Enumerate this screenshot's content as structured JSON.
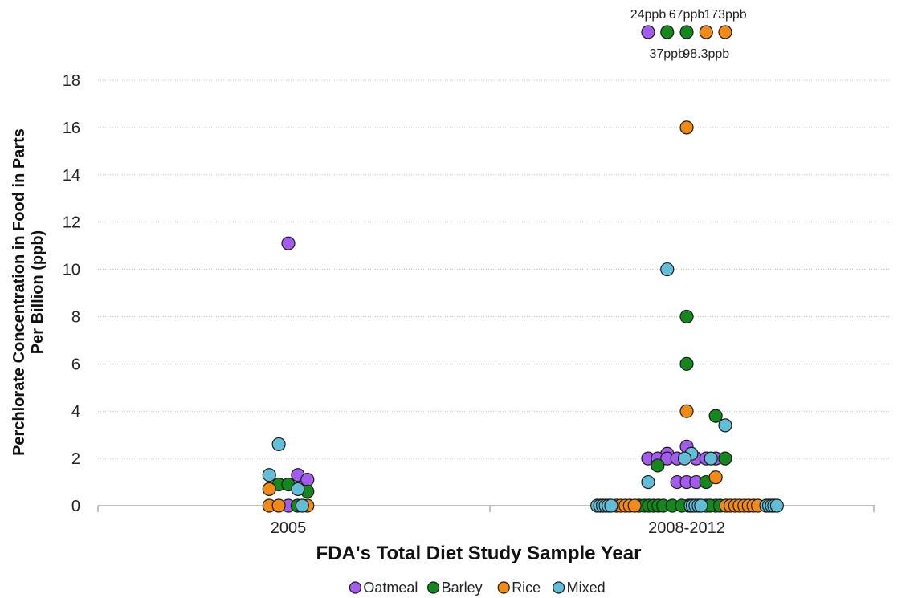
{
  "chart_data": {
    "type": "scatter",
    "title": "",
    "xlabel": "FDA's Total Diet Study Sample Year",
    "ylabel_lines": [
      "Perchlorate Concentration in Food in Parts",
      "Per Billion (ppb)"
    ],
    "ylim": [
      0,
      18
    ],
    "yticks": [
      0,
      2,
      4,
      6,
      8,
      10,
      12,
      14,
      16,
      18
    ],
    "grid": true,
    "legend_position": "bottom",
    "categories": [
      "2005",
      "2008-2012"
    ],
    "colors": {
      "Oatmeal": "#a45cf0",
      "Barley": "#14881c",
      "Rice": "#f18a16",
      "Mixed": "#62bdd6"
    },
    "series": [
      {
        "name": "Oatmeal",
        "points": [
          {
            "x": "2005",
            "y": 11.1,
            "j": 0.0
          },
          {
            "x": "2005",
            "y": 1.3,
            "j": 0.24
          },
          {
            "x": "2005",
            "y": 1.1,
            "j": 0.48
          },
          {
            "x": "2005",
            "y": 0,
            "j": 0.0
          },
          {
            "x": "2008-2012",
            "y": 2.5,
            "j": 0.0
          },
          {
            "x": "2008-2012",
            "y": 2.2,
            "j": -0.49
          },
          {
            "x": "2008-2012",
            "y": 2.0,
            "j": -0.97
          },
          {
            "x": "2008-2012",
            "y": 2.0,
            "j": -0.73
          },
          {
            "x": "2008-2012",
            "y": 2.0,
            "j": -0.49
          },
          {
            "x": "2008-2012",
            "y": 2.0,
            "j": -0.24
          },
          {
            "x": "2008-2012",
            "y": 2.0,
            "j": 0.24
          },
          {
            "x": "2008-2012",
            "y": 2.0,
            "j": 0.49
          },
          {
            "x": "2008-2012",
            "y": 2.0,
            "j": 0.73
          },
          {
            "x": "2008-2012",
            "y": 1.0,
            "j": -0.24
          },
          {
            "x": "2008-2012",
            "y": 1.0,
            "j": 0.0
          },
          {
            "x": "2008-2012",
            "y": 1.0,
            "j": 0.24
          },
          {
            "x": "2008-2012",
            "y": 0,
            "j": 0.05
          },
          {
            "x": "2008-2012",
            "y": 0,
            "j": 0.49
          },
          {
            "x": "2008-2012",
            "y": 0,
            "j": 0.73
          }
        ]
      },
      {
        "name": "Barley",
        "points": [
          {
            "x": "2005",
            "y": 0.9,
            "j": -0.24
          },
          {
            "x": "2005",
            "y": 0.9,
            "j": 0.0
          },
          {
            "x": "2005",
            "y": 0.6,
            "j": 0.48
          },
          {
            "x": "2005",
            "y": 0,
            "j": 0.23
          },
          {
            "x": "2008-2012",
            "y": 8.0,
            "j": 0.0
          },
          {
            "x": "2008-2012",
            "y": 6.0,
            "j": 0.0
          },
          {
            "x": "2008-2012",
            "y": 3.8,
            "j": 0.73
          },
          {
            "x": "2008-2012",
            "y": 2.0,
            "j": 0.97
          },
          {
            "x": "2008-2012",
            "y": 1.7,
            "j": -0.73
          },
          {
            "x": "2008-2012",
            "y": 1.0,
            "j": 0.49
          },
          {
            "x": "2008-2012",
            "y": 0,
            "j": -1.2
          },
          {
            "x": "2008-2012",
            "y": 0,
            "j": -1.07
          },
          {
            "x": "2008-2012",
            "y": 0,
            "j": -0.95
          },
          {
            "x": "2008-2012",
            "y": 0,
            "j": -0.83
          },
          {
            "x": "2008-2012",
            "y": 0,
            "j": -0.71
          },
          {
            "x": "2008-2012",
            "y": 0,
            "j": -0.59
          },
          {
            "x": "2008-2012",
            "y": 0,
            "j": -0.36
          },
          {
            "x": "2008-2012",
            "y": 0,
            "j": -0.12
          },
          {
            "x": "2008-2012",
            "y": 0,
            "j": 0.59
          },
          {
            "x": "2008-2012",
            "y": 0,
            "j": 0.84
          }
        ]
      },
      {
        "name": "Rice",
        "points": [
          {
            "x": "2005",
            "y": 0.7,
            "j": -0.48
          },
          {
            "x": "2005",
            "y": 0,
            "j": -0.48
          },
          {
            "x": "2005",
            "y": 0,
            "j": -0.24
          },
          {
            "x": "2005",
            "y": 0,
            "j": 0.48
          },
          {
            "x": "2008-2012",
            "y": 16.0,
            "j": 0.0
          },
          {
            "x": "2008-2012",
            "y": 4.0,
            "j": 0.0
          },
          {
            "x": "2008-2012",
            "y": 1.2,
            "j": 0.73
          },
          {
            "x": "2008-2012",
            "y": 0,
            "j": -1.77
          },
          {
            "x": "2008-2012",
            "y": 0,
            "j": -1.66
          },
          {
            "x": "2008-2012",
            "y": 0,
            "j": -1.54
          },
          {
            "x": "2008-2012",
            "y": 0,
            "j": -1.43
          },
          {
            "x": "2008-2012",
            "y": 0,
            "j": -1.31
          },
          {
            "x": "2008-2012",
            "y": 0,
            "j": 0.99
          },
          {
            "x": "2008-2012",
            "y": 0,
            "j": 1.1
          },
          {
            "x": "2008-2012",
            "y": 0,
            "j": 1.22
          },
          {
            "x": "2008-2012",
            "y": 0,
            "j": 1.33
          },
          {
            "x": "2008-2012",
            "y": 0,
            "j": 1.45
          },
          {
            "x": "2008-2012",
            "y": 0,
            "j": 1.56
          },
          {
            "x": "2008-2012",
            "y": 0,
            "j": 1.68
          },
          {
            "x": "2008-2012",
            "y": 0,
            "j": 1.79
          }
        ]
      },
      {
        "name": "Mixed",
        "points": [
          {
            "x": "2005",
            "y": 2.6,
            "j": -0.24
          },
          {
            "x": "2005",
            "y": 1.3,
            "j": -0.48
          },
          {
            "x": "2005",
            "y": 0.7,
            "j": 0.24
          },
          {
            "x": "2005",
            "y": 0,
            "j": 0.35
          },
          {
            "x": "2008-2012",
            "y": 10.0,
            "j": -0.49
          },
          {
            "x": "2008-2012",
            "y": 3.4,
            "j": 0.97
          },
          {
            "x": "2008-2012",
            "y": 2.2,
            "j": 0.12
          },
          {
            "x": "2008-2012",
            "y": 2.0,
            "j": -0.05
          },
          {
            "x": "2008-2012",
            "y": 2.0,
            "j": 0.61
          },
          {
            "x": "2008-2012",
            "y": 1.0,
            "j": -0.97
          },
          {
            "x": "2008-2012",
            "y": 0,
            "j": -2.25
          },
          {
            "x": "2008-2012",
            "y": 0,
            "j": -2.18
          },
          {
            "x": "2008-2012",
            "y": 0,
            "j": -2.11
          },
          {
            "x": "2008-2012",
            "y": 0,
            "j": -2.04
          },
          {
            "x": "2008-2012",
            "y": 0,
            "j": -1.97
          },
          {
            "x": "2008-2012",
            "y": 0,
            "j": -1.9
          },
          {
            "x": "2008-2012",
            "y": 0,
            "j": 0.1
          },
          {
            "x": "2008-2012",
            "y": 0,
            "j": 0.15
          },
          {
            "x": "2008-2012",
            "y": 0,
            "j": 0.22
          },
          {
            "x": "2008-2012",
            "y": 0,
            "j": 0.3
          },
          {
            "x": "2008-2012",
            "y": 0,
            "j": 0.36
          },
          {
            "x": "2008-2012",
            "y": 0,
            "j": 2.0
          },
          {
            "x": "2008-2012",
            "y": 0,
            "j": 2.07
          },
          {
            "x": "2008-2012",
            "y": 0,
            "j": 2.14
          },
          {
            "x": "2008-2012",
            "y": 0,
            "j": 2.2
          },
          {
            "x": "2008-2012",
            "y": 0,
            "j": 2.27
          }
        ]
      }
    ],
    "off_scale_annotations": [
      {
        "series": "Oatmeal",
        "x": "2008-2012",
        "j": -0.97,
        "value": 24,
        "label": "24ppb",
        "label_pos": "above"
      },
      {
        "series": "Barley",
        "x": "2008-2012",
        "j": -0.49,
        "value": 37,
        "label": "37ppb",
        "label_pos": "below"
      },
      {
        "series": "Barley",
        "x": "2008-2012",
        "j": 0.0,
        "value": 67,
        "label": "67ppb",
        "label_pos": "above"
      },
      {
        "series": "Rice",
        "x": "2008-2012",
        "j": 0.49,
        "value": 98.3,
        "label": "98.3ppb",
        "label_pos": "below"
      },
      {
        "series": "Rice",
        "x": "2008-2012",
        "j": 0.97,
        "value": 173,
        "label": "173ppb",
        "label_pos": "above"
      }
    ],
    "legend": [
      "Oatmeal",
      "Barley",
      "Rice",
      "Mixed"
    ]
  }
}
